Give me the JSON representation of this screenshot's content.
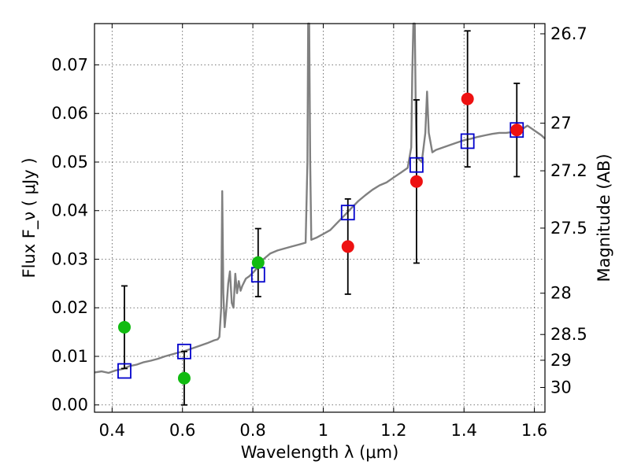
{
  "chart_data": {
    "type": "scatter",
    "title": "",
    "xlabel": "Wavelength  λ (μm)",
    "ylabel": "Flux  F_ν  ( μJy )",
    "ylabel_right": "Magnitude (AB)",
    "xlim": [
      0.35,
      1.63
    ],
    "ylim": [
      -0.0015,
      0.0785
    ],
    "grid": true,
    "x_ticks": [
      0.4,
      0.6,
      0.8,
      1.0,
      1.2,
      1.4,
      1.6
    ],
    "x_tick_labels": [
      "0.4",
      "0.6",
      "0.8",
      "1",
      "1.2",
      "1.4",
      "1.6"
    ],
    "y_ticks": [
      0.0,
      0.01,
      0.02,
      0.03,
      0.04,
      0.05,
      0.06,
      0.07
    ],
    "y_tick_labels": [
      "0.00",
      "0.01",
      "0.02",
      "0.03",
      "0.04",
      "0.05",
      "0.06",
      "0.07"
    ],
    "right_ticks": [
      {
        "label": "26.7",
        "flux": 0.0764
      },
      {
        "label": "27",
        "flux": 0.058
      },
      {
        "label": "27.2",
        "flux": 0.0482
      },
      {
        "label": "27.5",
        "flux": 0.0364
      },
      {
        "label": "28",
        "flux": 0.023
      },
      {
        "label": "28.5",
        "flux": 0.0145
      },
      {
        "label": "29",
        "flux": 0.0092
      },
      {
        "label": "30",
        "flux": 0.0036
      }
    ],
    "series": [
      {
        "kind": "spectrum_line",
        "color": "#808080",
        "points": [
          [
            0.35,
            0.0067
          ],
          [
            0.37,
            0.0069
          ],
          [
            0.39,
            0.0066
          ],
          [
            0.41,
            0.0071
          ],
          [
            0.43,
            0.0074
          ],
          [
            0.45,
            0.008
          ],
          [
            0.47,
            0.0083
          ],
          [
            0.49,
            0.0088
          ],
          [
            0.51,
            0.0091
          ],
          [
            0.53,
            0.0095
          ],
          [
            0.55,
            0.01
          ],
          [
            0.57,
            0.0104
          ],
          [
            0.59,
            0.0108
          ],
          [
            0.61,
            0.0112
          ],
          [
            0.63,
            0.0117
          ],
          [
            0.65,
            0.0122
          ],
          [
            0.67,
            0.0127
          ],
          [
            0.69,
            0.0133
          ],
          [
            0.7,
            0.0135
          ],
          [
            0.705,
            0.014
          ],
          [
            0.71,
            0.02
          ],
          [
            0.713,
            0.044
          ],
          [
            0.716,
            0.023
          ],
          [
            0.72,
            0.016
          ],
          [
            0.725,
            0.02
          ],
          [
            0.73,
            0.025
          ],
          [
            0.735,
            0.0275
          ],
          [
            0.74,
            0.021
          ],
          [
            0.745,
            0.02
          ],
          [
            0.75,
            0.027
          ],
          [
            0.755,
            0.023
          ],
          [
            0.76,
            0.0255
          ],
          [
            0.765,
            0.0235
          ],
          [
            0.77,
            0.0245
          ],
          [
            0.78,
            0.026
          ],
          [
            0.79,
            0.0265
          ],
          [
            0.8,
            0.0272
          ],
          [
            0.81,
            0.028
          ],
          [
            0.82,
            0.029
          ],
          [
            0.83,
            0.03
          ],
          [
            0.85,
            0.0312
          ],
          [
            0.87,
            0.0318
          ],
          [
            0.89,
            0.0322
          ],
          [
            0.91,
            0.0326
          ],
          [
            0.93,
            0.033
          ],
          [
            0.95,
            0.0334
          ],
          [
            0.955,
            0.05
          ],
          [
            0.957,
            0.0785
          ],
          [
            0.96,
            0.0785
          ],
          [
            0.963,
            0.05
          ],
          [
            0.966,
            0.034
          ],
          [
            0.98,
            0.0344
          ],
          [
            1.0,
            0.0352
          ],
          [
            1.02,
            0.036
          ],
          [
            1.04,
            0.0375
          ],
          [
            1.06,
            0.039
          ],
          [
            1.08,
            0.0405
          ],
          [
            1.1,
            0.042
          ],
          [
            1.12,
            0.0432
          ],
          [
            1.14,
            0.0443
          ],
          [
            1.16,
            0.0452
          ],
          [
            1.18,
            0.0458
          ],
          [
            1.2,
            0.0468
          ],
          [
            1.22,
            0.0478
          ],
          [
            1.24,
            0.0488
          ],
          [
            1.25,
            0.053
          ],
          [
            1.253,
            0.068
          ],
          [
            1.256,
            0.0785
          ],
          [
            1.26,
            0.0785
          ],
          [
            1.263,
            0.06
          ],
          [
            1.266,
            0.051
          ],
          [
            1.28,
            0.05
          ],
          [
            1.29,
            0.056
          ],
          [
            1.295,
            0.0645
          ],
          [
            1.3,
            0.056
          ],
          [
            1.31,
            0.052
          ],
          [
            1.32,
            0.0525
          ],
          [
            1.34,
            0.053
          ],
          [
            1.36,
            0.0535
          ],
          [
            1.38,
            0.054
          ],
          [
            1.4,
            0.0545
          ],
          [
            1.42,
            0.0548
          ],
          [
            1.44,
            0.0552
          ],
          [
            1.46,
            0.0555
          ],
          [
            1.48,
            0.0558
          ],
          [
            1.5,
            0.056
          ],
          [
            1.52,
            0.056
          ],
          [
            1.54,
            0.0562
          ],
          [
            1.56,
            0.0565
          ],
          [
            1.58,
            0.0575
          ],
          [
            1.6,
            0.0565
          ],
          [
            1.62,
            0.0555
          ],
          [
            1.63,
            0.0548
          ]
        ]
      },
      {
        "kind": "model_squares",
        "color": "#0000cc",
        "points": [
          [
            0.435,
            0.007
          ],
          [
            0.605,
            0.011
          ],
          [
            0.815,
            0.0268
          ],
          [
            1.07,
            0.0396
          ],
          [
            1.265,
            0.0494
          ],
          [
            1.41,
            0.0543
          ],
          [
            1.55,
            0.0566
          ]
        ]
      },
      {
        "kind": "detections_green",
        "color": "#11bb11",
        "points": [
          [
            0.435,
            0.016,
            0.0085
          ],
          [
            0.605,
            0.0055,
            0.0055
          ],
          [
            0.815,
            0.0293,
            0.007
          ]
        ]
      },
      {
        "kind": "detections_red",
        "color": "#ee1111",
        "points": [
          [
            1.07,
            0.0326,
            0.0098
          ],
          [
            1.265,
            0.046,
            0.0168
          ],
          [
            1.41,
            0.063,
            0.014
          ],
          [
            1.55,
            0.0566,
            0.0096
          ]
        ]
      }
    ]
  }
}
